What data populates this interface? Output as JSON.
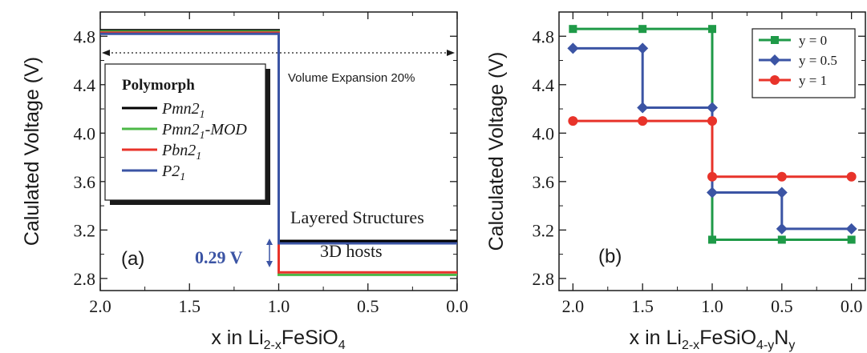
{
  "chart_data": [
    {
      "type": "line",
      "panel_label": "(a)",
      "xlabel": {
        "prefix": "x in Li",
        "sub1": "2-x",
        "mid": "FeSiO",
        "sub2": "4"
      },
      "ylabel": "Calulated Voltage (V)",
      "xlim": [
        2.0,
        0.0
      ],
      "ylim": [
        2.7,
        5.0
      ],
      "x_ticks": [
        "2.0",
        "1.5",
        "1.0",
        "0.5",
        "0.0"
      ],
      "y_ticks": [
        "2.8",
        "3.2",
        "3.6",
        "4.0",
        "4.4",
        "4.8"
      ],
      "legend": {
        "title": "Polymorph",
        "placement": "upper-left"
      },
      "series": [
        {
          "name": "Pmn2",
          "name_sub": "1",
          "name_suffix": "",
          "color": "#000000",
          "steps": [
            [
              2.0,
              4.85
            ],
            [
              1.0,
              4.85
            ],
            [
              1.0,
              3.11
            ],
            [
              0.0,
              3.11
            ]
          ]
        },
        {
          "name": "Pmn2",
          "name_sub": "1",
          "name_suffix": "-MOD",
          "color": "#4cb847",
          "steps": [
            [
              2.0,
              4.84
            ],
            [
              1.0,
              4.84
            ],
            [
              1.0,
              2.83
            ],
            [
              0.0,
              2.83
            ]
          ]
        },
        {
          "name": "Pbn2",
          "name_sub": "1",
          "name_suffix": "",
          "color": "#e8332a",
          "steps": [
            [
              2.0,
              4.83
            ],
            [
              1.0,
              4.83
            ],
            [
              1.0,
              2.85
            ],
            [
              0.0,
              2.85
            ]
          ]
        },
        {
          "name": "P2",
          "name_sub": "1",
          "name_suffix": "",
          "color": "#3b54a4",
          "steps": [
            [
              2.0,
              4.82
            ],
            [
              1.0,
              4.82
            ],
            [
              1.0,
              3.09
            ],
            [
              0.0,
              3.09
            ]
          ]
        }
      ],
      "annotations": {
        "volume_expansion": "Volume Expansion 20%",
        "layered": "Layered Structures",
        "hosts": "3D hosts",
        "gap": "0.29 V",
        "gap_color": "#3b54a4"
      }
    },
    {
      "type": "line",
      "panel_label": "(b)",
      "xlabel": {
        "prefix": "x in Li",
        "sub1": "2-x",
        "mid": "FeSiO",
        "sub2": "4-y",
        "suffix": "N",
        "sub3": "y"
      },
      "ylabel": "Calculated Voltage (V)",
      "xlim": [
        2.1,
        -0.1
      ],
      "ylim": [
        2.7,
        5.0
      ],
      "x_ticks": [
        "2.0",
        "1.5",
        "1.0",
        "0.5",
        "0.0"
      ],
      "y_ticks": [
        "2.8",
        "3.2",
        "3.6",
        "4.0",
        "4.4",
        "4.8"
      ],
      "legend": {
        "placement": "upper-right"
      },
      "series": [
        {
          "name": "y = 0",
          "color": "#1f9a48",
          "marker": "square",
          "points": [
            [
              2.0,
              4.86
            ],
            [
              1.5,
              4.86
            ],
            [
              1.0,
              4.86
            ],
            [
              1.0,
              3.12
            ],
            [
              0.5,
              3.12
            ],
            [
              0.0,
              3.12
            ]
          ]
        },
        {
          "name": "y = 0.5",
          "color": "#3b54a4",
          "marker": "diamond",
          "points": [
            [
              2.0,
              4.7
            ],
            [
              1.5,
              4.7
            ],
            [
              1.5,
              4.21
            ],
            [
              1.0,
              4.21
            ],
            [
              1.0,
              3.51
            ],
            [
              0.5,
              3.51
            ],
            [
              0.5,
              3.21
            ],
            [
              0.0,
              3.21
            ]
          ]
        },
        {
          "name": "y = 1",
          "color": "#e8332a",
          "marker": "circle",
          "points": [
            [
              2.0,
              4.1
            ],
            [
              1.5,
              4.1
            ],
            [
              1.0,
              4.1
            ],
            [
              1.0,
              3.64
            ],
            [
              0.5,
              3.64
            ],
            [
              0.0,
              3.64
            ]
          ]
        }
      ]
    }
  ]
}
